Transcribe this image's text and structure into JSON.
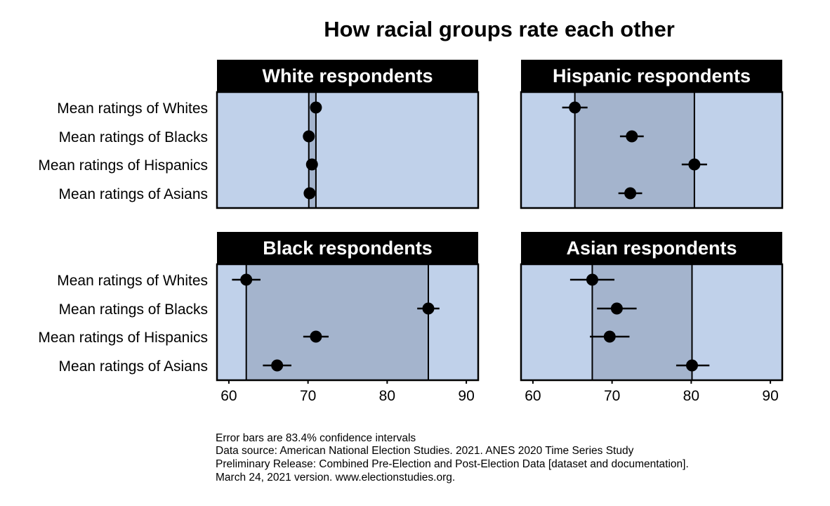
{
  "chart_data": {
    "type": "dot-errorbar",
    "title": "How racial groups rate each other",
    "xlim": [
      58.5,
      91.5
    ],
    "xticks": [
      60,
      70,
      80,
      90
    ],
    "colors": {
      "panel_bg": "#c0d1ea",
      "range_band": "#a4b4cd",
      "title_bar": "#000000",
      "marker": "#000000"
    },
    "row_labels": [
      "Mean ratings of Whites",
      "Mean ratings of Blacks",
      "Mean ratings of Hispanics",
      "Mean ratings of Asians"
    ],
    "panels": [
      {
        "title": "White respondents",
        "points": [
          {
            "value": 71.0,
            "low": 70.7,
            "high": 71.3
          },
          {
            "value": 70.1,
            "low": 69.8,
            "high": 70.4
          },
          {
            "value": 70.5,
            "low": 70.2,
            "high": 70.8
          },
          {
            "value": 70.2,
            "low": 69.9,
            "high": 70.5
          }
        ],
        "band": [
          70.1,
          71.0
        ]
      },
      {
        "title": "Hispanic respondents",
        "points": [
          {
            "value": 65.3,
            "low": 63.7,
            "high": 66.9
          },
          {
            "value": 72.5,
            "low": 71.0,
            "high": 74.0
          },
          {
            "value": 80.4,
            "low": 78.8,
            "high": 82.0
          },
          {
            "value": 72.3,
            "low": 70.8,
            "high": 73.8
          }
        ],
        "band": [
          65.3,
          80.4
        ]
      },
      {
        "title": "Black respondents",
        "points": [
          {
            "value": 62.2,
            "low": 60.4,
            "high": 64.0
          },
          {
            "value": 85.2,
            "low": 83.8,
            "high": 86.6
          },
          {
            "value": 71.0,
            "low": 69.4,
            "high": 72.6
          },
          {
            "value": 66.1,
            "low": 64.3,
            "high": 67.9
          }
        ],
        "band": [
          62.2,
          85.2
        ]
      },
      {
        "title": "Asian respondents",
        "points": [
          {
            "value": 67.5,
            "low": 64.7,
            "high": 70.3
          },
          {
            "value": 70.6,
            "low": 68.1,
            "high": 73.1
          },
          {
            "value": 69.7,
            "low": 67.2,
            "high": 72.2
          },
          {
            "value": 80.1,
            "low": 78.1,
            "high": 82.3
          }
        ],
        "band": [
          67.5,
          80.1
        ]
      }
    ],
    "footnote": [
      "Error bars are 83.4% confidence intervals",
      "Data source: American National Election Studies. 2021. ANES 2020 Time Series Study",
      "Preliminary Release: Combined Pre-Election and Post-Election Data [dataset and documentation].",
      "March 24, 2021 version. www.electionstudies.org."
    ]
  }
}
